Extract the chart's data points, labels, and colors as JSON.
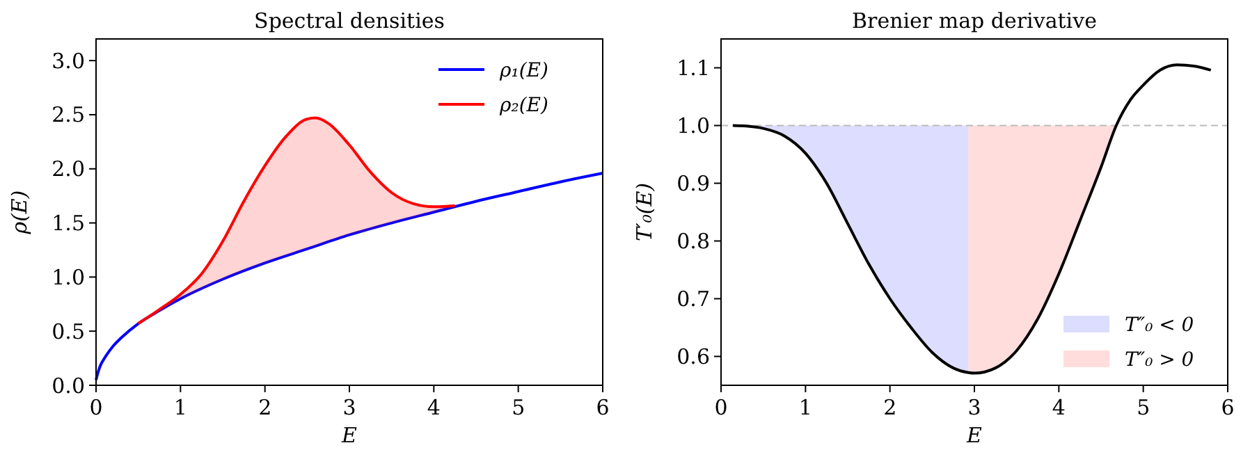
{
  "chart_data": [
    {
      "type": "line",
      "title": "Spectral densities",
      "xlabel": "E",
      "ylabel": "ρ(E)",
      "xlim": [
        0,
        6
      ],
      "ylim": [
        0,
        3.2
      ],
      "xticks": [
        0,
        1,
        2,
        3,
        4,
        5,
        6
      ],
      "yticks": [
        {
          "value": 0,
          "label": "0.0"
        },
        0.5,
        {
          "value": 1,
          "label": "1.0"
        },
        1.5,
        {
          "value": 2,
          "label": "2.0"
        },
        2.5,
        {
          "value": 3,
          "label": "3.0"
        }
      ],
      "legend": "top right",
      "series": [
        {
          "name": "ρ₁(E)",
          "color": "#0000ff",
          "x": [
            0,
            0.02,
            0.05,
            0.1,
            0.2,
            0.3,
            0.5,
            0.75,
            1,
            1.5,
            2,
            2.5,
            3,
            3.5,
            4,
            4.5,
            5,
            5.5,
            6
          ],
          "values": [
            0.05,
            0.11,
            0.18,
            0.25,
            0.36,
            0.44,
            0.57,
            0.69,
            0.8,
            0.98,
            1.13,
            1.26,
            1.39,
            1.5,
            1.6,
            1.7,
            1.79,
            1.88,
            1.96
          ]
        },
        {
          "name": "ρ₂(E)",
          "color": "#ff0000",
          "x": [
            0.5,
            0.75,
            1,
            1.25,
            1.5,
            1.75,
            2,
            2.25,
            2.5,
            2.6,
            2.75,
            3,
            3.25,
            3.5,
            3.75,
            4,
            4.25
          ],
          "values": [
            0.57,
            0.7,
            0.84,
            1.03,
            1.33,
            1.7,
            2.03,
            2.3,
            2.46,
            2.47,
            2.42,
            2.22,
            1.97,
            1.78,
            1.68,
            1.65,
            1.66
          ],
          "lower": [
            0.57,
            0.69,
            0.8,
            0.89,
            0.98,
            1.06,
            1.13,
            1.2,
            1.26,
            1.29,
            1.33,
            1.39,
            1.44,
            1.5,
            1.55,
            1.6,
            1.65
          ],
          "upper": [
            0.57,
            0.7,
            0.84,
            1.03,
            1.33,
            1.7,
            2.03,
            2.3,
            2.46,
            2.47,
            2.42,
            2.22,
            1.97,
            1.78,
            1.68,
            1.65,
            1.66
          ]
        }
      ]
    },
    {
      "type": "line",
      "title": "Brenier map derivative",
      "xlabel": "E",
      "ylabel": "T′₀(E)",
      "xlim": [
        0,
        6
      ],
      "ylim": [
        0.55,
        1.15
      ],
      "xticks": [
        0,
        1,
        2,
        3,
        4,
        5,
        6
      ],
      "yticks": [
        0.6,
        0.7,
        0.8,
        0.9,
        {
          "value": 1,
          "label": "1.0"
        },
        1.1
      ],
      "legend": "bottom right",
      "ref_lines": [
        {
          "axis": "y",
          "value": 1,
          "color": "#bbbbbb",
          "line_style": "dashed"
        }
      ],
      "series": [
        {
          "name": "T″₀ < 0",
          "type": "area",
          "color": "#ddddff",
          "x": [
            0.14,
            0.3,
            0.5,
            0.75,
            1,
            1.25,
            1.5,
            1.75,
            2,
            2.25,
            2.5,
            2.75,
            2.93
          ],
          "values": [
            1,
            1,
            1,
            1,
            1,
            1,
            1,
            1,
            1,
            1,
            1,
            1,
            1
          ]
        },
        {
          "name": "T″₀ > 0",
          "type": "area",
          "color": "#ffdddd",
          "x": [
            2.93,
            3,
            3.25,
            3.5,
            3.75,
            4,
            4.25,
            4.5,
            4.68
          ],
          "values": [
            1,
            1,
            1,
            1,
            1,
            1,
            1,
            1,
            1
          ]
        },
        {
          "color": "#000000",
          "x": [
            0.14,
            0.3,
            0.5,
            0.75,
            1,
            1.25,
            1.5,
            1.75,
            2,
            2.25,
            2.5,
            2.75,
            2.93,
            3,
            3.25,
            3.5,
            3.75,
            4,
            4.25,
            4.5,
            4.68,
            4.85,
            5,
            5.2,
            5.4,
            5.6,
            5.8
          ],
          "values": [
            1.0,
            0.999,
            0.995,
            0.982,
            0.952,
            0.9,
            0.83,
            0.76,
            0.7,
            0.65,
            0.607,
            0.58,
            0.572,
            0.571,
            0.58,
            0.61,
            0.665,
            0.743,
            0.835,
            0.928,
            1.0,
            1.045,
            1.07,
            1.096,
            1.105,
            1.103,
            1.096
          ]
        }
      ]
    }
  ]
}
